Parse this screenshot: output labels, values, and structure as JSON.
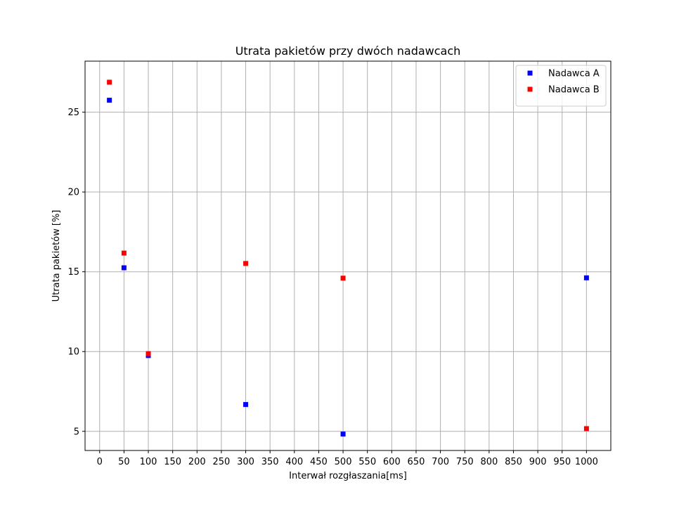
{
  "chart_data": {
    "type": "scatter",
    "title": "Utrata pakietów przy dwóch nadawcach",
    "xlabel": "Interwał rozgłaszania[ms]",
    "ylabel": "Utrata pakietów [%]",
    "xlim": [
      -30,
      1050
    ],
    "ylim": [
      3.8,
      28.2
    ],
    "xticks": [
      0,
      50,
      100,
      150,
      200,
      250,
      300,
      350,
      400,
      450,
      500,
      550,
      600,
      650,
      700,
      750,
      800,
      850,
      900,
      950,
      1000
    ],
    "yticks": [
      5,
      10,
      15,
      20,
      25
    ],
    "grid": true,
    "legend_position": "top-right",
    "series": [
      {
        "name": "Nadawca A",
        "color": "#0000ff",
        "marker": "square",
        "x": [
          20,
          50,
          100,
          300,
          500,
          1000
        ],
        "y": [
          25.75,
          15.25,
          9.75,
          6.68,
          4.83,
          14.62
        ]
      },
      {
        "name": "Nadawca B",
        "color": "#ff0000",
        "marker": "square",
        "x": [
          20,
          50,
          100,
          300,
          500,
          1000
        ],
        "y": [
          26.88,
          16.17,
          9.87,
          15.52,
          14.6,
          5.17
        ]
      }
    ]
  }
}
